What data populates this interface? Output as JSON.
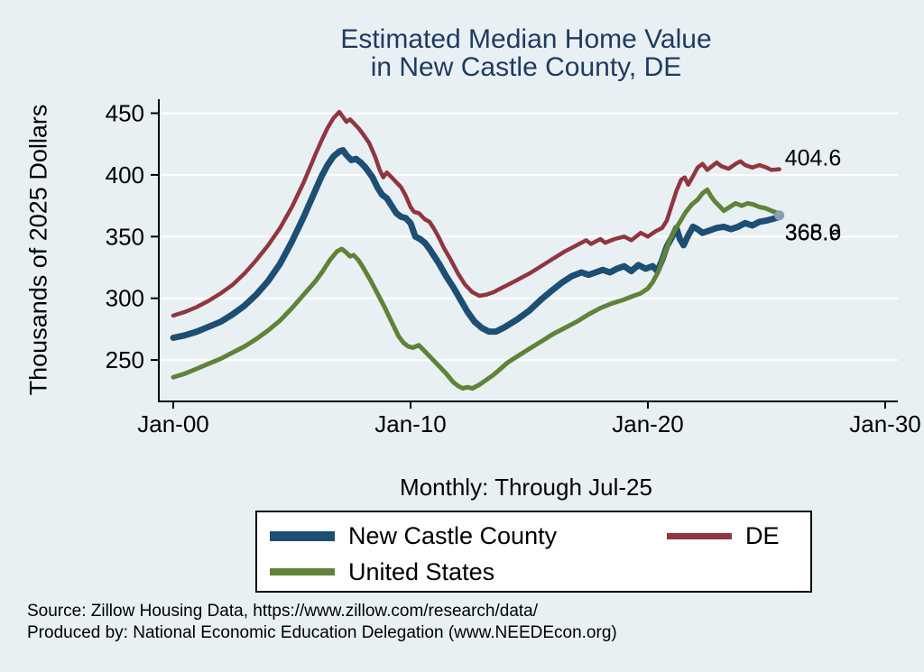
{
  "chart_data": {
    "type": "line",
    "title_line1": "Estimated Median Home Value",
    "title_line2": "in New Castle County, DE",
    "subtitle": "Monthly: Through Jul-25",
    "ylabel": "Thousands of 2025 Dollars",
    "xlabel": "",
    "grid": true,
    "legend_position": "bottom",
    "ylim": [
      250,
      450
    ],
    "yticks": [
      250,
      300,
      350,
      400,
      450
    ],
    "xticks": [
      {
        "t": 2000,
        "label": "Jan-00"
      },
      {
        "t": 2010,
        "label": "Jan-10"
      },
      {
        "t": 2020,
        "label": "Jan-20"
      },
      {
        "t": 2030,
        "label": "Jan-30"
      }
    ],
    "end_dot": {
      "year": 2025.54,
      "value": 367.2,
      "color": "#85a0af"
    },
    "series": [
      {
        "name": "New Castle County",
        "color": "#1d4e74",
        "width": 7,
        "end_label": "365.9",
        "label_dx": 6,
        "label_dy": 26,
        "points": [
          [
            2000.0,
            268
          ],
          [
            2000.5,
            270
          ],
          [
            2001.0,
            273
          ],
          [
            2001.5,
            277
          ],
          [
            2002.0,
            281
          ],
          [
            2002.5,
            287
          ],
          [
            2003.0,
            294
          ],
          [
            2003.5,
            303
          ],
          [
            2004.0,
            314
          ],
          [
            2004.5,
            328
          ],
          [
            2005.0,
            346
          ],
          [
            2005.5,
            366
          ],
          [
            2006.0,
            388
          ],
          [
            2006.25,
            399
          ],
          [
            2006.5,
            408
          ],
          [
            2006.75,
            415
          ],
          [
            2007.0,
            419
          ],
          [
            2007.15,
            420
          ],
          [
            2007.3,
            416
          ],
          [
            2007.5,
            412
          ],
          [
            2007.7,
            413
          ],
          [
            2007.9,
            410
          ],
          [
            2008.1,
            406
          ],
          [
            2008.4,
            398
          ],
          [
            2008.6,
            390
          ],
          [
            2008.8,
            384
          ],
          [
            2009.0,
            381
          ],
          [
            2009.2,
            375
          ],
          [
            2009.4,
            369
          ],
          [
            2009.6,
            366
          ],
          [
            2009.8,
            365
          ],
          [
            2010.0,
            361
          ],
          [
            2010.2,
            350
          ],
          [
            2010.4,
            348
          ],
          [
            2010.6,
            345
          ],
          [
            2010.8,
            340
          ],
          [
            2011.0,
            334
          ],
          [
            2011.2,
            328
          ],
          [
            2011.5,
            318
          ],
          [
            2011.8,
            309
          ],
          [
            2012.1,
            299
          ],
          [
            2012.4,
            289
          ],
          [
            2012.7,
            281
          ],
          [
            2013.0,
            276
          ],
          [
            2013.3,
            273
          ],
          [
            2013.6,
            273
          ],
          [
            2014.0,
            277
          ],
          [
            2014.5,
            283
          ],
          [
            2015.0,
            290
          ],
          [
            2015.5,
            299
          ],
          [
            2016.0,
            307
          ],
          [
            2016.4,
            313
          ],
          [
            2016.8,
            318
          ],
          [
            2017.2,
            321
          ],
          [
            2017.5,
            319
          ],
          [
            2017.8,
            321
          ],
          [
            2018.1,
            323
          ],
          [
            2018.4,
            321
          ],
          [
            2018.7,
            324
          ],
          [
            2019.0,
            326
          ],
          [
            2019.3,
            322
          ],
          [
            2019.6,
            327
          ],
          [
            2019.9,
            324
          ],
          [
            2020.2,
            326
          ],
          [
            2020.4,
            322
          ],
          [
            2020.6,
            331
          ],
          [
            2020.8,
            342
          ],
          [
            2021.0,
            349
          ],
          [
            2021.2,
            357
          ],
          [
            2021.35,
            348
          ],
          [
            2021.5,
            343
          ],
          [
            2021.7,
            351
          ],
          [
            2021.9,
            358
          ],
          [
            2022.1,
            356
          ],
          [
            2022.3,
            353
          ],
          [
            2022.6,
            355
          ],
          [
            2022.9,
            357
          ],
          [
            2023.2,
            358
          ],
          [
            2023.5,
            356
          ],
          [
            2023.8,
            358
          ],
          [
            2024.1,
            361
          ],
          [
            2024.4,
            359
          ],
          [
            2024.7,
            362
          ],
          [
            2025.0,
            363
          ],
          [
            2025.2,
            364
          ],
          [
            2025.54,
            365.9
          ]
        ]
      },
      {
        "name": "DE",
        "color": "#90363f",
        "width": 4.5,
        "end_label": "404.6",
        "label_dx": 6,
        "label_dy": -4,
        "points": [
          [
            2000.0,
            286
          ],
          [
            2000.5,
            289
          ],
          [
            2001.0,
            293
          ],
          [
            2001.5,
            298
          ],
          [
            2002.0,
            304
          ],
          [
            2002.5,
            311
          ],
          [
            2003.0,
            320
          ],
          [
            2003.5,
            331
          ],
          [
            2004.0,
            343
          ],
          [
            2004.5,
            357
          ],
          [
            2005.0,
            374
          ],
          [
            2005.5,
            394
          ],
          [
            2006.0,
            417
          ],
          [
            2006.25,
            428
          ],
          [
            2006.5,
            438
          ],
          [
            2006.75,
            446
          ],
          [
            2007.0,
            451
          ],
          [
            2007.15,
            447
          ],
          [
            2007.3,
            443
          ],
          [
            2007.45,
            445
          ],
          [
            2007.6,
            442
          ],
          [
            2007.8,
            438
          ],
          [
            2008.0,
            433
          ],
          [
            2008.25,
            426
          ],
          [
            2008.5,
            415
          ],
          [
            2008.7,
            404
          ],
          [
            2008.85,
            398
          ],
          [
            2009.0,
            402
          ],
          [
            2009.2,
            398
          ],
          [
            2009.4,
            394
          ],
          [
            2009.6,
            390
          ],
          [
            2009.8,
            383
          ],
          [
            2010.0,
            374
          ],
          [
            2010.15,
            370
          ],
          [
            2010.35,
            369
          ],
          [
            2010.6,
            364
          ],
          [
            2010.8,
            362
          ],
          [
            2011.0,
            356
          ],
          [
            2011.2,
            349
          ],
          [
            2011.4,
            341
          ],
          [
            2011.7,
            331
          ],
          [
            2012.0,
            320
          ],
          [
            2012.3,
            311
          ],
          [
            2012.6,
            305
          ],
          [
            2012.9,
            302
          ],
          [
            2013.2,
            303
          ],
          [
            2013.5,
            305
          ],
          [
            2013.8,
            308
          ],
          [
            2014.1,
            311
          ],
          [
            2014.5,
            315
          ],
          [
            2015.0,
            320
          ],
          [
            2015.5,
            326
          ],
          [
            2016.0,
            332
          ],
          [
            2016.5,
            338
          ],
          [
            2017.0,
            343
          ],
          [
            2017.4,
            347
          ],
          [
            2017.6,
            344
          ],
          [
            2018.0,
            348
          ],
          [
            2018.2,
            345
          ],
          [
            2018.6,
            348
          ],
          [
            2019.0,
            350
          ],
          [
            2019.3,
            347
          ],
          [
            2019.7,
            353
          ],
          [
            2020.0,
            350
          ],
          [
            2020.3,
            354
          ],
          [
            2020.6,
            357
          ],
          [
            2020.8,
            363
          ],
          [
            2021.0,
            375
          ],
          [
            2021.2,
            387
          ],
          [
            2021.4,
            396
          ],
          [
            2021.55,
            398
          ],
          [
            2021.7,
            392
          ],
          [
            2021.9,
            399
          ],
          [
            2022.1,
            406
          ],
          [
            2022.3,
            409
          ],
          [
            2022.5,
            404
          ],
          [
            2022.7,
            407
          ],
          [
            2022.9,
            410
          ],
          [
            2023.1,
            407
          ],
          [
            2023.4,
            405
          ],
          [
            2023.7,
            409
          ],
          [
            2023.9,
            411
          ],
          [
            2024.1,
            408
          ],
          [
            2024.4,
            406
          ],
          [
            2024.7,
            408
          ],
          [
            2025.0,
            406
          ],
          [
            2025.2,
            404
          ],
          [
            2025.54,
            404.6
          ]
        ]
      },
      {
        "name": "United States",
        "color": "#5e8339",
        "width": 5,
        "end_label": "368.6",
        "label_dx": 6,
        "label_dy": 29,
        "points": [
          [
            2000.0,
            236
          ],
          [
            2000.5,
            239
          ],
          [
            2001.0,
            243
          ],
          [
            2001.5,
            247
          ],
          [
            2002.0,
            251
          ],
          [
            2002.5,
            256
          ],
          [
            2003.0,
            261
          ],
          [
            2003.5,
            267
          ],
          [
            2004.0,
            274
          ],
          [
            2004.5,
            282
          ],
          [
            2005.0,
            292
          ],
          [
            2005.5,
            303
          ],
          [
            2006.0,
            314
          ],
          [
            2006.3,
            322
          ],
          [
            2006.6,
            331
          ],
          [
            2006.9,
            338
          ],
          [
            2007.1,
            340
          ],
          [
            2007.3,
            337
          ],
          [
            2007.45,
            334
          ],
          [
            2007.6,
            335
          ],
          [
            2007.8,
            331
          ],
          [
            2008.0,
            325
          ],
          [
            2008.3,
            315
          ],
          [
            2008.6,
            304
          ],
          [
            2008.9,
            293
          ],
          [
            2009.1,
            285
          ],
          [
            2009.3,
            277
          ],
          [
            2009.5,
            269
          ],
          [
            2009.7,
            264
          ],
          [
            2009.9,
            261
          ],
          [
            2010.1,
            260
          ],
          [
            2010.35,
            262
          ],
          [
            2010.6,
            257
          ],
          [
            2010.9,
            251
          ],
          [
            2011.2,
            245
          ],
          [
            2011.5,
            239
          ],
          [
            2011.8,
            232
          ],
          [
            2012.0,
            229
          ],
          [
            2012.2,
            227
          ],
          [
            2012.4,
            228
          ],
          [
            2012.6,
            227
          ],
          [
            2012.9,
            230
          ],
          [
            2013.2,
            234
          ],
          [
            2013.5,
            238
          ],
          [
            2013.8,
            243
          ],
          [
            2014.1,
            248
          ],
          [
            2014.5,
            253
          ],
          [
            2015.0,
            259
          ],
          [
            2015.5,
            265
          ],
          [
            2016.0,
            271
          ],
          [
            2016.5,
            276
          ],
          [
            2017.0,
            281
          ],
          [
            2017.5,
            287
          ],
          [
            2018.0,
            292
          ],
          [
            2018.5,
            296
          ],
          [
            2019.0,
            299
          ],
          [
            2019.4,
            302
          ],
          [
            2019.7,
            304
          ],
          [
            2020.0,
            308
          ],
          [
            2020.2,
            313
          ],
          [
            2020.45,
            322
          ],
          [
            2020.7,
            336
          ],
          [
            2020.9,
            346
          ],
          [
            2021.1,
            354
          ],
          [
            2021.35,
            362
          ],
          [
            2021.6,
            370
          ],
          [
            2021.85,
            376
          ],
          [
            2022.1,
            380
          ],
          [
            2022.3,
            385
          ],
          [
            2022.5,
            388
          ],
          [
            2022.65,
            383
          ],
          [
            2022.8,
            379
          ],
          [
            2023.0,
            375
          ],
          [
            2023.2,
            371
          ],
          [
            2023.45,
            374
          ],
          [
            2023.7,
            377
          ],
          [
            2023.95,
            375
          ],
          [
            2024.2,
            377
          ],
          [
            2024.45,
            376
          ],
          [
            2024.7,
            374
          ],
          [
            2024.95,
            373
          ],
          [
            2025.2,
            371
          ],
          [
            2025.54,
            368.6
          ]
        ]
      }
    ]
  },
  "legend": {
    "items": [
      {
        "label": "New Castle County",
        "color": "#1d4e74",
        "thickness": 11
      },
      {
        "label": "DE",
        "color": "#90363f",
        "thickness": 7
      },
      {
        "label": "United States",
        "color": "#5e8339",
        "thickness": 8
      }
    ]
  },
  "source": {
    "line1": "Source: Zillow Housing Data, https://www.zillow.com/research/data/",
    "line2": "Produced by: National Economic Education Delegation (www.NEEDEcon.org)"
  }
}
